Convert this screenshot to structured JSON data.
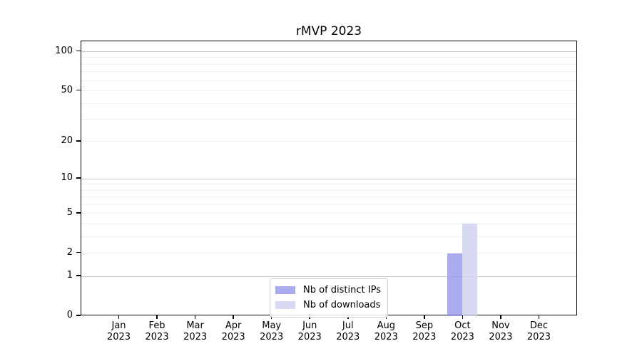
{
  "chart_data": {
    "type": "bar",
    "title": "rMVP 2023",
    "categories": [
      {
        "month": "Jan",
        "year": "2023"
      },
      {
        "month": "Feb",
        "year": "2023"
      },
      {
        "month": "Mar",
        "year": "2023"
      },
      {
        "month": "Apr",
        "year": "2023"
      },
      {
        "month": "May",
        "year": "2023"
      },
      {
        "month": "Jun",
        "year": "2023"
      },
      {
        "month": "Jul",
        "year": "2023"
      },
      {
        "month": "Aug",
        "year": "2023"
      },
      {
        "month": "Sep",
        "year": "2023"
      },
      {
        "month": "Oct",
        "year": "2023"
      },
      {
        "month": "Nov",
        "year": "2023"
      },
      {
        "month": "Dec",
        "year": "2023"
      }
    ],
    "series": [
      {
        "name": "Nb of distinct IPs",
        "color": "#a9abee",
        "fill": "rgba(148,150,234,0.8)",
        "values": [
          0,
          0,
          0,
          0,
          0,
          0,
          0,
          0,
          0,
          2,
          0,
          0
        ]
      },
      {
        "name": "Nb of downloads",
        "color": "#d8daf3",
        "fill": "rgba(206,209,240,0.8)",
        "values": [
          0,
          0,
          0,
          0,
          0,
          0,
          0,
          0,
          0,
          4,
          0,
          0
        ]
      }
    ],
    "y_axis": {
      "scale": "log1p",
      "ticks": [
        0,
        1,
        2,
        5,
        10,
        20,
        50,
        100
      ],
      "max": 120,
      "major_gridlines": [
        1,
        10,
        100
      ],
      "minor_gridlines": [
        2,
        3,
        4,
        5,
        6,
        7,
        8,
        9,
        20,
        30,
        40,
        50,
        60,
        70,
        80,
        90
      ],
      "grid_major_color": "#c9c9c9",
      "grid_minor_color": "#efefef"
    },
    "x_axis": {
      "tick_count": 12
    },
    "legend": {
      "position": "lower-center"
    }
  }
}
